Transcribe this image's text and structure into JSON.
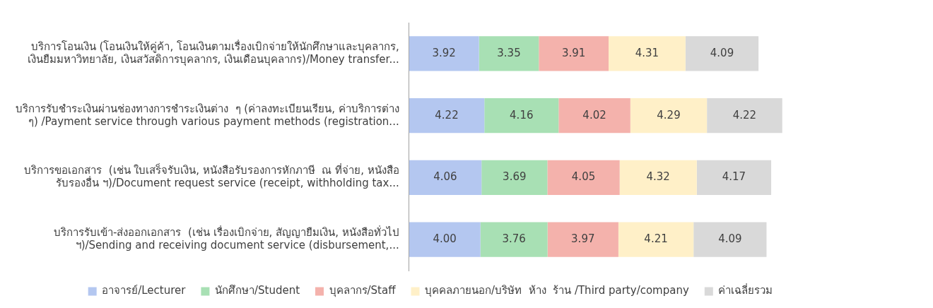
{
  "chart_data": {
    "type": "bar",
    "orientation": "horizontal",
    "stacked": true,
    "legend": "bottom",
    "grid": false,
    "categories": [
      "บริการโอนเงิน (โอนเงินให้คู่ค้า, โอนเงินตามเรื่องเบิกจ่ายให้นักศึกษาและบุคลากร,\nเงินยืมมหาวิทยาลัย, เงินสวัสดิการบุคลากร, เงินเดือนบุคลากร)/Money transfer...",
      "บริการรับชำระเงินผ่านช่องทางการชำระเงินต่าง  ๆ (ค่าลงทะเบียนเรียน, ค่าบริการต่าง\nๆ) /Payment service through various payment methods (registration...",
      "บริการขอเอกสาร  (เช่น ใบเสร็จรับเงิน, หนังสือรับรองการหักภาษี  ณ ที่จ่าย, หนังสือ\nรับรองอื่น ฯ)/Document request service (receipt, withholding tax...",
      "บริการรับเข้า-ส่งออกเอกสาร  (เช่น เรื่องเบิกจ่าย, สัญญายืมเงิน, หนังสือทั่วไป\nฯ)/Sending and receiving document service (disbursement,..."
    ],
    "series": [
      {
        "name": "อาจารย์/Lecturer",
        "color": "#b4c7f0",
        "values": [
          3.92,
          4.22,
          4.06,
          4.0
        ],
        "value_labels": [
          "3.92",
          "4.22",
          "4.06",
          "4.00"
        ]
      },
      {
        "name": "นักศึกษา/Student",
        "color": "#a8e0b4",
        "values": [
          3.35,
          4.16,
          3.69,
          3.76
        ],
        "value_labels": [
          "3.35",
          "4.16",
          "3.69",
          "3.76"
        ]
      },
      {
        "name": "บุคลากร/Staff",
        "color": "#f4b2ac",
        "values": [
          3.91,
          4.02,
          4.05,
          3.97
        ],
        "value_labels": [
          "3.91",
          "4.02",
          "4.05",
          "3.97"
        ]
      },
      {
        "name": "บุคคลภายนอก/บริษัท  ห้าง  ร้าน /Third party/company",
        "color": "#fff0c8",
        "values": [
          4.31,
          4.29,
          4.32,
          4.21
        ],
        "value_labels": [
          "4.31",
          "4.29",
          "4.32",
          "4.21"
        ]
      },
      {
        "name": "ค่าเฉลี่ยรวม",
        "color": "#d9d9d9",
        "values": [
          4.09,
          4.22,
          4.17,
          4.09
        ],
        "value_labels": [
          "4.09",
          "4.22",
          "4.17",
          "4.09"
        ]
      }
    ]
  }
}
